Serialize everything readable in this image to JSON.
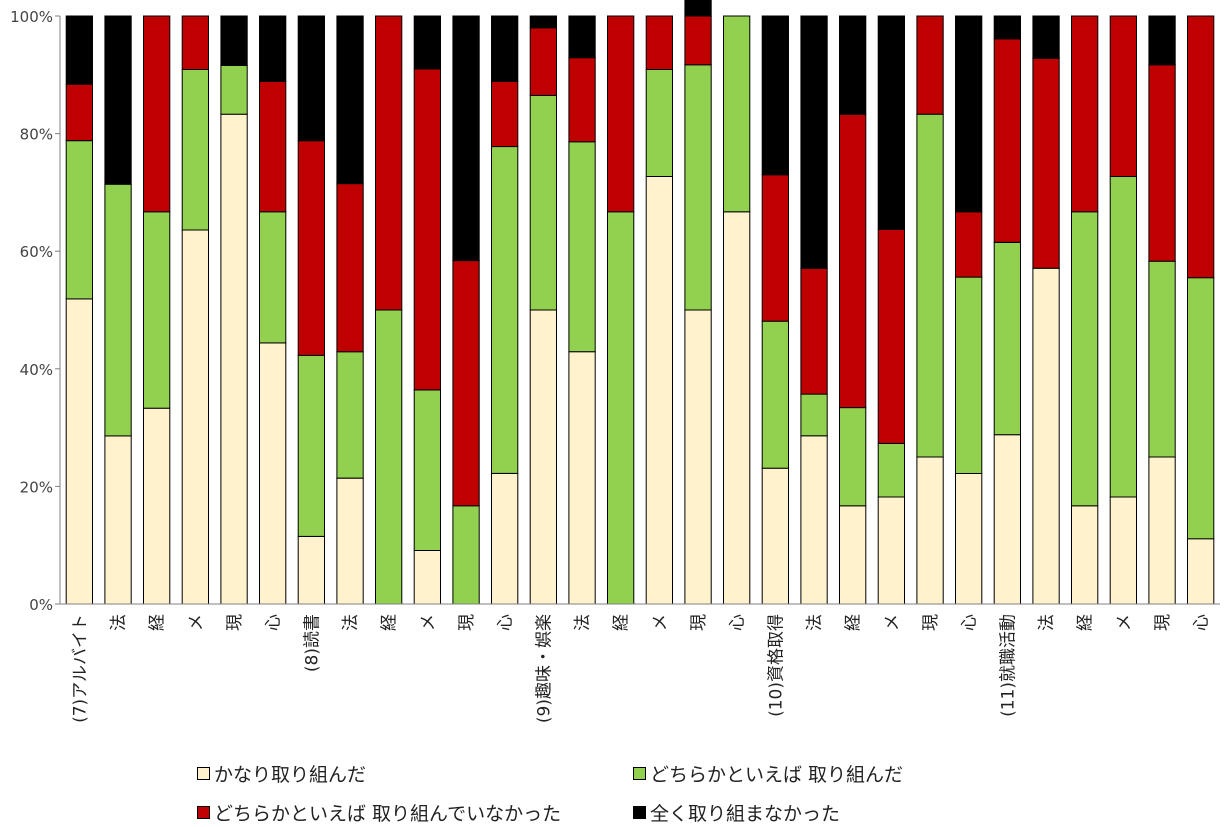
{
  "chart_data": {
    "type": "bar",
    "stacked": true,
    "percent": true,
    "ylim": [
      0,
      100
    ],
    "yticks": [
      "0%",
      "20%",
      "40%",
      "60%",
      "80%",
      "100%"
    ],
    "categories": [
      "(7)アルバイト",
      "法",
      "経",
      "メ",
      "現",
      "心",
      "(8)読書",
      "法",
      "経",
      "メ",
      "現",
      "心",
      "(9)趣味・娯楽",
      "法",
      "経",
      "メ",
      "現",
      "心",
      "(10)資格取得",
      "法",
      "経",
      "メ",
      "現",
      "心",
      "(11)就職活動",
      "法",
      "経",
      "メ",
      "現",
      "心"
    ],
    "series": [
      {
        "name": "かなり取り組んだ",
        "color": "#FFF2CC",
        "values": [
          51.9,
          28.6,
          33.3,
          63.6,
          83.3,
          44.4,
          11.5,
          21.4,
          0,
          9.1,
          0,
          22.2,
          50.0,
          42.9,
          0,
          72.7,
          50.0,
          66.7,
          23.1,
          28.6,
          16.7,
          18.2,
          25.0,
          22.2,
          28.8,
          57.1,
          16.7,
          18.2,
          25.0,
          11.1
        ]
      },
      {
        "name": "どちらかといえば 取り組んだ",
        "color": "#92D050",
        "values": [
          26.9,
          42.8,
          33.4,
          27.3,
          8.3,
          22.3,
          30.8,
          21.5,
          50.0,
          27.3,
          16.7,
          55.6,
          36.5,
          35.7,
          66.7,
          18.2,
          41.7,
          33.3,
          25.0,
          7.1,
          16.7,
          9.1,
          58.3,
          33.4,
          32.7,
          0,
          50.0,
          54.5,
          33.3,
          44.4
        ]
      },
      {
        "name": "どちらかといえば 取り組んでいなかった",
        "color": "#C00000",
        "values": [
          9.6,
          0,
          33.3,
          9.1,
          0,
          22.2,
          36.5,
          28.6,
          50.0,
          54.6,
          41.7,
          11.1,
          11.5,
          14.3,
          33.3,
          9.1,
          8.3,
          0,
          24.9,
          21.4,
          49.9,
          36.4,
          16.7,
          11.1,
          34.6,
          35.7,
          33.3,
          27.3,
          33.4,
          44.5
        ]
      },
      {
        "name": "全く取り組まなかった",
        "color": "#000000",
        "values": [
          11.6,
          28.6,
          0,
          0,
          8.4,
          11.1,
          21.2,
          28.5,
          0,
          9.0,
          41.6,
          11.1,
          2.0,
          7.1,
          0,
          0,
          8.3,
          0,
          27.0,
          42.9,
          16.7,
          36.3,
          0,
          33.3,
          3.9,
          7.2,
          0,
          0,
          8.3,
          0
        ]
      }
    ],
    "grid": false,
    "legend_position": "bottom"
  }
}
